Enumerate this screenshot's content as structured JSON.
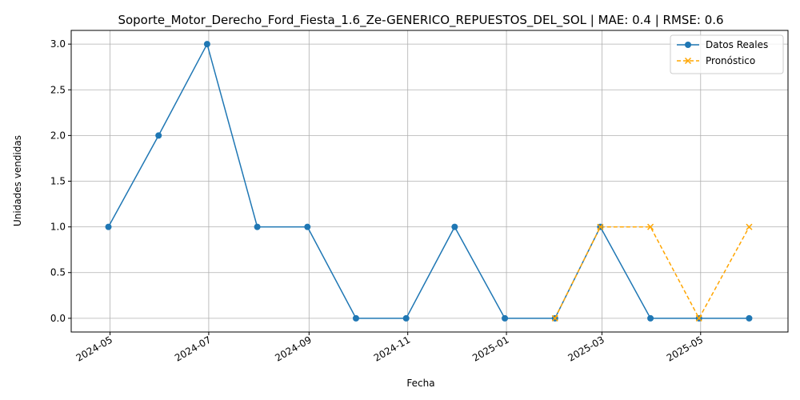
{
  "chart_data": {
    "type": "line",
    "title": "Soporte_Motor_Derecho_Ford_Fiesta_1.6_Ze-GENERICO_REPUESTOS_DEL_SOL | MAE: 0.4 | RMSE: 0.6",
    "xlabel": "Fecha",
    "ylabel": "Unidades vendidas",
    "xlim": [
      "2024-04-07",
      "2025-06-24"
    ],
    "ylim": [
      -0.15,
      3.15
    ],
    "x_ticks": [
      {
        "date": "2024-05-01",
        "label": "2024-05"
      },
      {
        "date": "2024-07-01",
        "label": "2024-07"
      },
      {
        "date": "2024-09-01",
        "label": "2024-09"
      },
      {
        "date": "2024-11-01",
        "label": "2024-11"
      },
      {
        "date": "2025-01-01",
        "label": "2025-01"
      },
      {
        "date": "2025-03-01",
        "label": "2025-03"
      },
      {
        "date": "2025-05-01",
        "label": "2025-05"
      }
    ],
    "y_ticks": [
      {
        "value": 0.0,
        "label": "0.0"
      },
      {
        "value": 0.5,
        "label": "0.5"
      },
      {
        "value": 1.0,
        "label": "1.0"
      },
      {
        "value": 1.5,
        "label": "1.5"
      },
      {
        "value": 2.0,
        "label": "2.0"
      },
      {
        "value": 2.5,
        "label": "2.5"
      },
      {
        "value": 3.0,
        "label": "3.0"
      }
    ],
    "grid": true,
    "legend_position": "top-right",
    "series": [
      {
        "name": "Datos Reales",
        "color": "#1f77b4",
        "line_style": "solid",
        "marker": "circle",
        "x": [
          "2024-04-30",
          "2024-05-31",
          "2024-06-30",
          "2024-07-31",
          "2024-08-31",
          "2024-09-30",
          "2024-10-31",
          "2024-11-30",
          "2024-12-31",
          "2025-01-31",
          "2025-02-28",
          "2025-03-31",
          "2025-04-30",
          "2025-05-31"
        ],
        "values": [
          1,
          2,
          3,
          1,
          1,
          0,
          0,
          1,
          0,
          0,
          1,
          0,
          0,
          0
        ]
      },
      {
        "name": "Pronóstico",
        "color": "#ffa500",
        "line_style": "dashed",
        "marker": "x",
        "x": [
          "2025-01-31",
          "2025-02-28",
          "2025-03-31",
          "2025-04-30",
          "2025-05-31"
        ],
        "values": [
          0,
          1,
          1,
          0,
          1
        ]
      }
    ]
  }
}
